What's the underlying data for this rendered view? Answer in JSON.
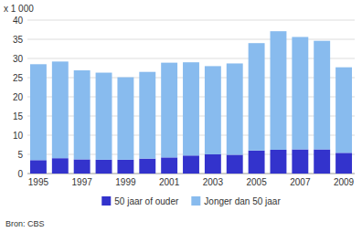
{
  "chart_data": {
    "type": "bar",
    "stacked": true,
    "y_label": "x 1 000",
    "annotations": [
      "Bron: CBS"
    ],
    "categories": [
      "1995",
      null,
      "1997",
      null,
      "1999",
      null,
      "2001",
      null,
      "2003",
      null,
      "2005",
      null,
      "2007",
      null,
      "2009"
    ],
    "series": [
      {
        "name": "50 jaar of ouder",
        "color": "#3333cc",
        "values": [
          3.5,
          4.0,
          3.7,
          3.6,
          3.6,
          3.9,
          4.2,
          4.7,
          5.0,
          4.9,
          6.0,
          6.2,
          6.3,
          6.3,
          5.4
        ]
      },
      {
        "name": "Jonger dan 50 jaar",
        "color": "#88bbee",
        "values": [
          25.0,
          25.2,
          23.2,
          22.7,
          21.5,
          22.6,
          24.7,
          24.3,
          23.0,
          23.8,
          28.0,
          30.9,
          29.3,
          28.3,
          22.3
        ]
      }
    ],
    "ylim": [
      0,
      40
    ],
    "yticks": [
      0,
      5,
      10,
      15,
      20,
      25,
      30,
      35,
      40
    ],
    "grid": true,
    "legend": "bottom"
  }
}
